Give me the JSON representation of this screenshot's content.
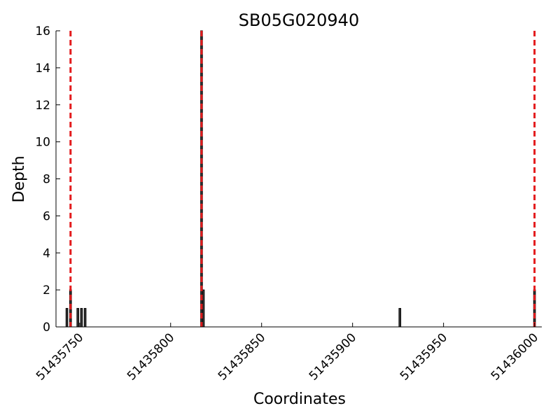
{
  "chart_data": {
    "type": "bar",
    "title": "SB05G020940",
    "xlabel": "Coordinates",
    "ylabel": "Depth",
    "xlim": [
      51435737,
      51436004
    ],
    "ylim": [
      0,
      16
    ],
    "x_ticks": [
      51435750,
      51435800,
      51435850,
      51435900,
      51435950,
      51436000
    ],
    "y_ticks": [
      0,
      2,
      4,
      6,
      8,
      10,
      12,
      14,
      16
    ],
    "grid": false,
    "bars": [
      {
        "x": 51435743,
        "depth": 1
      },
      {
        "x": 51435745,
        "depth": 2
      },
      {
        "x": 51435749,
        "depth": 1
      },
      {
        "x": 51435751,
        "depth": 1
      },
      {
        "x": 51435753,
        "depth": 1
      },
      {
        "x": 51435817,
        "depth": 16
      },
      {
        "x": 51435818,
        "depth": 2
      },
      {
        "x": 51435926,
        "depth": 1
      },
      {
        "x": 51436000,
        "depth": 2
      }
    ],
    "reference_lines": [
      51435745,
      51435817,
      51436000
    ],
    "colors": {
      "bar_fill": "#3a3a3a",
      "bar_edge": "#000000",
      "reference_line": "#e31a1c",
      "axis": "#000000"
    }
  }
}
